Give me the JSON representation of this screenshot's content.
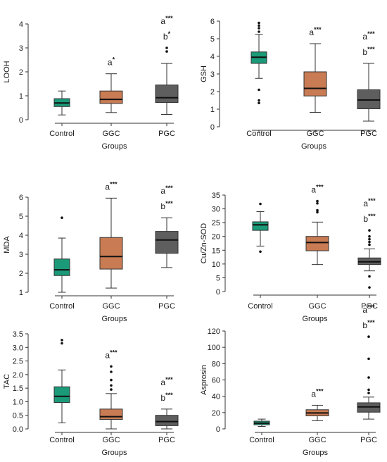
{
  "colors": {
    "Control": "#1a9a78",
    "GGC": "#c97b53",
    "PGC": "#5e5e5e"
  },
  "chart_data": [
    {
      "type": "box",
      "ylabel": "LOOH",
      "xlabel": "Groups",
      "categories": [
        "Control",
        "GGC",
        "PGC"
      ],
      "yticks": [
        0,
        1,
        2,
        3,
        4
      ],
      "ylim": [
        0,
        4
      ],
      "boxes": [
        {
          "group": "Control",
          "min": 0.2,
          "q1": 0.55,
          "median": 0.7,
          "q3": 0.88,
          "max": 1.2,
          "outliers": [],
          "annotations": []
        },
        {
          "group": "GGC",
          "min": 0.3,
          "q1": 0.68,
          "median": 0.85,
          "q3": 1.2,
          "max": 1.92,
          "outliers": [],
          "annotations": [
            {
              "letter": "a",
              "sig": "*"
            }
          ]
        },
        {
          "group": "PGC",
          "min": 0.22,
          "q1": 0.72,
          "median": 0.92,
          "q3": 1.45,
          "max": 2.35,
          "outliers": [
            2.85,
            3.0
          ],
          "annotations": [
            {
              "letter": "a",
              "sig": "***"
            },
            {
              "letter": "b",
              "sig": "*"
            }
          ]
        }
      ]
    },
    {
      "type": "box",
      "ylabel": "GSH",
      "xlabel": "Groups",
      "categories": [
        "Control",
        "GGC",
        "PGC"
      ],
      "yticks": [
        0,
        1,
        2,
        3,
        4,
        5,
        6
      ],
      "ylim": [
        0,
        6
      ],
      "boxes": [
        {
          "group": "Control",
          "min": 2.75,
          "q1": 3.6,
          "median": 3.95,
          "q3": 4.25,
          "max": 5.25,
          "outliers": [
            1.35,
            1.5,
            2.1,
            5.4,
            5.6,
            5.75,
            5.9
          ],
          "annotations": []
        },
        {
          "group": "GGC",
          "min": 0.82,
          "q1": 1.75,
          "median": 2.18,
          "q3": 3.12,
          "max": 4.72,
          "outliers": [],
          "annotations": [
            {
              "letter": "a",
              "sig": "***"
            }
          ]
        },
        {
          "group": "PGC",
          "min": 0.32,
          "q1": 1.02,
          "median": 1.52,
          "q3": 2.1,
          "max": 3.6,
          "outliers": [],
          "annotations": [
            {
              "letter": "a",
              "sig": "***"
            },
            {
              "letter": "b",
              "sig": "***"
            }
          ]
        }
      ]
    },
    {
      "type": "box",
      "ylabel": "MDA",
      "xlabel": "Groups",
      "categories": [
        "Control",
        "GGC",
        "PGC"
      ],
      "yticks": [
        1,
        2,
        3,
        4,
        5,
        6
      ],
      "ylim": [
        1,
        6
      ],
      "boxes": [
        {
          "group": "Control",
          "min": 1.0,
          "q1": 1.88,
          "median": 2.18,
          "q3": 2.75,
          "max": 3.85,
          "outliers": [
            4.92
          ],
          "annotations": []
        },
        {
          "group": "GGC",
          "min": 1.22,
          "q1": 2.22,
          "median": 2.88,
          "q3": 3.88,
          "max": 5.95,
          "outliers": [],
          "annotations": [
            {
              "letter": "a",
              "sig": "***"
            }
          ]
        },
        {
          "group": "PGC",
          "min": 2.3,
          "q1": 3.05,
          "median": 3.75,
          "q3": 4.2,
          "max": 4.92,
          "outliers": [],
          "annotations": [
            {
              "letter": "a",
              "sig": "***"
            },
            {
              "letter": "b",
              "sig": "***"
            }
          ]
        }
      ]
    },
    {
      "type": "box",
      "ylabel": "Cu/Zn-SOD",
      "xlabel": "Groups",
      "categories": [
        "Control",
        "GGC",
        "PGC"
      ],
      "yticks": [
        0,
        5,
        10,
        15,
        20,
        25,
        30,
        35
      ],
      "ylim": [
        0,
        35
      ],
      "boxes": [
        {
          "group": "Control",
          "min": 16.5,
          "q1": 22.2,
          "median": 24.2,
          "q3": 25.3,
          "max": 29.0,
          "outliers": [
            14.5,
            31.8
          ],
          "annotations": []
        },
        {
          "group": "GGC",
          "min": 9.8,
          "q1": 14.8,
          "median": 17.8,
          "q3": 20.0,
          "max": 25.2,
          "outliers": [
            28.8,
            29.5,
            32.0,
            32.8
          ],
          "annotations": [
            {
              "letter": "a",
              "sig": "***"
            }
          ]
        },
        {
          "group": "PGC",
          "min": 7.5,
          "q1": 9.8,
          "median": 10.8,
          "q3": 12.2,
          "max": 15.5,
          "outliers": [
            1.5,
            5.5,
            17.0,
            18.0,
            19.0,
            20.0,
            22.2
          ],
          "annotations": [
            {
              "letter": "a",
              "sig": "***"
            },
            {
              "letter": "b",
              "sig": "***"
            }
          ]
        }
      ]
    },
    {
      "type": "box",
      "ylabel": "TAC",
      "xlabel": "Groups",
      "categories": [
        "Control",
        "GGC",
        "PGC"
      ],
      "yticks": [
        0.0,
        0.5,
        1.0,
        1.5,
        2.0,
        2.5,
        3.0,
        3.5
      ],
      "ylim": [
        0,
        3.5
      ],
      "boxes": [
        {
          "group": "Control",
          "min": 0.22,
          "q1": 0.97,
          "median": 1.2,
          "q3": 1.55,
          "max": 2.17,
          "outliers": [
            3.15,
            3.27
          ],
          "annotations": []
        },
        {
          "group": "GGC",
          "min": 0.0,
          "q1": 0.35,
          "median": 0.45,
          "q3": 0.73,
          "max": 1.3,
          "outliers": [
            1.45,
            1.6,
            1.8,
            2.1,
            2.3
          ],
          "annotations": [
            {
              "letter": "a",
              "sig": "***"
            }
          ]
        },
        {
          "group": "PGC",
          "min": 0.0,
          "q1": 0.12,
          "median": 0.27,
          "q3": 0.5,
          "max": 0.73,
          "outliers": [],
          "annotations": [
            {
              "letter": "a",
              "sig": "***"
            },
            {
              "letter": "b",
              "sig": "***"
            }
          ]
        }
      ]
    },
    {
      "type": "box",
      "ylabel": "Asprosin",
      "xlabel": "Groups",
      "categories": [
        "Control",
        "GGC",
        "PGC"
      ],
      "yticks": [
        0,
        20,
        40,
        60,
        80,
        100,
        120
      ],
      "ylim": [
        0,
        120
      ],
      "boxes": [
        {
          "group": "Control",
          "min": 3.0,
          "q1": 5.0,
          "median": 7.0,
          "q3": 9.5,
          "max": 12.0,
          "outliers": [],
          "annotations": []
        },
        {
          "group": "GGC",
          "min": 10.0,
          "q1": 16.0,
          "median": 19.5,
          "q3": 23.5,
          "max": 29.0,
          "outliers": [],
          "annotations": [
            {
              "letter": "a",
              "sig": "***"
            }
          ]
        },
        {
          "group": "PGC",
          "min": 12.0,
          "q1": 20.5,
          "median": 27.0,
          "q3": 32.0,
          "max": 39.0,
          "outliers": [
            44.0,
            48.0,
            63.0,
            86.0,
            113.0
          ],
          "annotations": [
            {
              "letter": "a",
              "sig": "***"
            },
            {
              "letter": "b",
              "sig": "***"
            }
          ]
        }
      ]
    }
  ]
}
